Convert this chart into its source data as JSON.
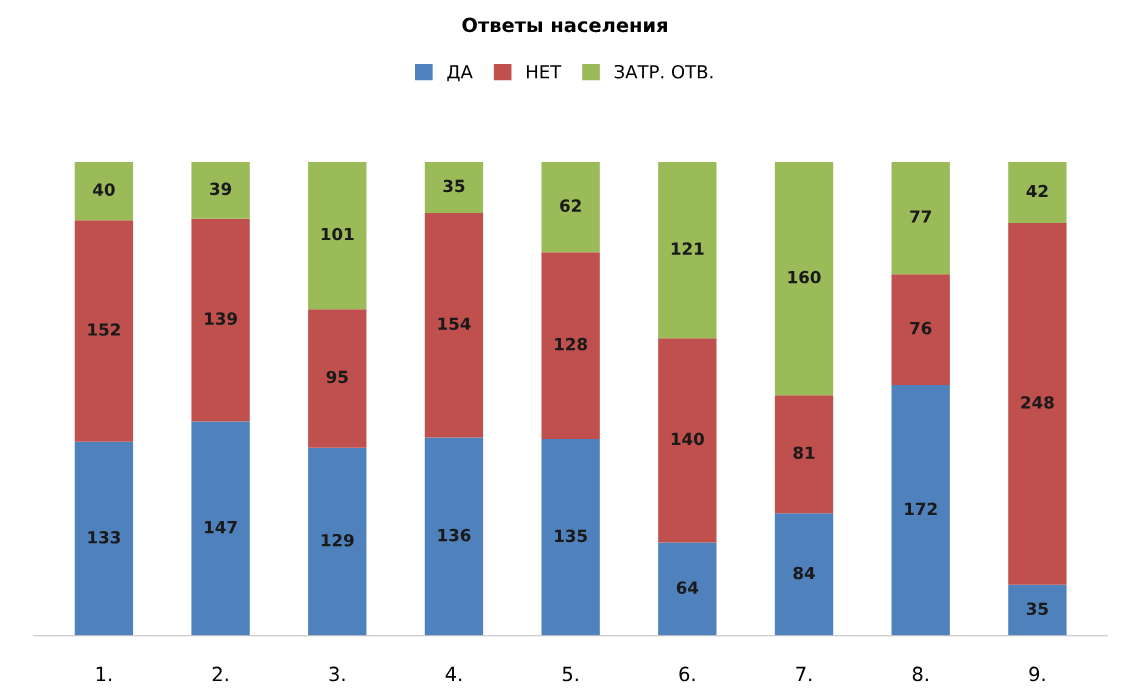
{
  "chart_data": {
    "type": "bar",
    "title": "Ответы населения",
    "stacked": true,
    "data_labels": true,
    "legend": "top",
    "grid": false,
    "categories": [
      "1.",
      "2.",
      "3.",
      "4.",
      "5.",
      "6.",
      "7.",
      "8.",
      "9."
    ],
    "series": [
      {
        "name": "ДА",
        "color": "#4f81bd",
        "values": [
          133,
          147,
          129,
          136,
          135,
          64,
          84,
          172,
          35
        ]
      },
      {
        "name": "НЕТ",
        "color": "#c0504d",
        "values": [
          152,
          139,
          95,
          154,
          128,
          140,
          81,
          76,
          248
        ]
      },
      {
        "name": "ЗАТР. ОТВ.",
        "color": "#9bbb59",
        "values": [
          40,
          39,
          101,
          35,
          62,
          121,
          160,
          77,
          42
        ]
      }
    ]
  }
}
